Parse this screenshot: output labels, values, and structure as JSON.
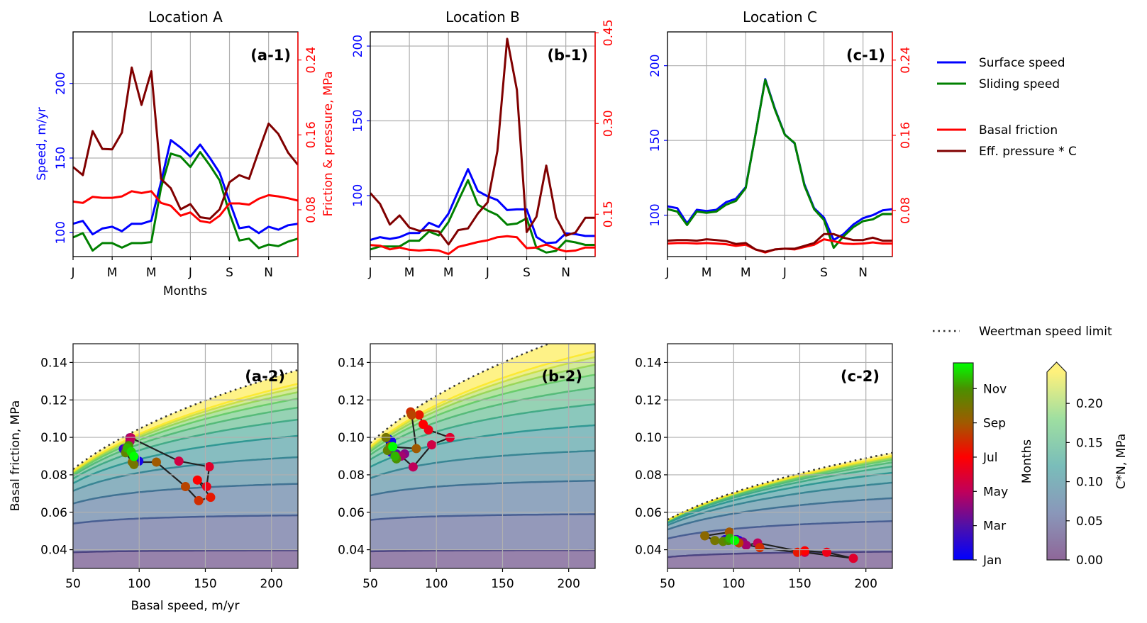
{
  "legend": {
    "items": [
      {
        "label": "Surface speed",
        "color": "#0000ff",
        "style": "solid"
      },
      {
        "label": "Sliding speed",
        "color": "#008000",
        "style": "solid"
      },
      {
        "label": "Basal friction",
        "color": "#ff0000",
        "style": "solid"
      },
      {
        "label": "Eff. pressure * C",
        "color": "#800000",
        "style": "solid"
      }
    ],
    "weertman": {
      "label": "Weertman speed limit",
      "color": "#333333",
      "style": "dotted"
    }
  },
  "colorbars": {
    "months": {
      "label": "Months",
      "ticklabels": [
        "Jan",
        "Mar",
        "May",
        "Jul",
        "Sep",
        "Nov"
      ],
      "tickvalues": [
        0,
        2,
        4,
        6,
        8,
        10
      ],
      "range": [
        0,
        11.5
      ]
    },
    "cn": {
      "label": "C*N, MPa",
      "ticklabels": [
        "0.00",
        "0.05",
        "0.10",
        "0.15",
        "0.20"
      ],
      "tickvalues": [
        0,
        0.05,
        0.1,
        0.15,
        0.2
      ],
      "range": [
        0,
        0.24
      ],
      "extend": "max",
      "colormap": "viridis"
    }
  },
  "axis_labels": {
    "speed": "Speed, m/yr",
    "friction": "Friction & pressure, MPa",
    "months": "Months",
    "basal_friction": "Basal friction, MPa",
    "basal_speed": "Basal speed, m/yr"
  },
  "chart_data": [
    {
      "type": "line",
      "title": "Location A",
      "panel_label": "(a-1)",
      "xticklabels": [
        "J",
        "M",
        "M",
        "J",
        "S",
        "N"
      ],
      "xtickvalues": [
        0,
        2,
        4,
        6,
        8,
        10
      ],
      "xlim": [
        0,
        11.5
      ],
      "ylim_left": [
        84,
        234.5
      ],
      "yticklabels_left": [
        "100",
        "150",
        "200"
      ],
      "ytickvalues_left": [
        100,
        150,
        200
      ],
      "ylim_right": [
        0.03,
        0.27
      ],
      "yticklabels_right": [
        "0.08",
        "0.16",
        "0.24"
      ],
      "ytickvalues_right": [
        0.08,
        0.16,
        0.24
      ],
      "x": [
        0,
        0.5,
        1,
        1.5,
        2,
        2.5,
        3,
        3.5,
        4,
        4.5,
        5,
        5.5,
        6,
        6.5,
        7,
        7.5,
        8,
        8.5,
        9,
        9.5,
        10,
        10.5,
        11,
        11.5
      ],
      "series": [
        {
          "name": "Surface speed",
          "axis": "left",
          "values": [
            106,
            107.9,
            98.9,
            102.8,
            104,
            101,
            106,
            106,
            108,
            134,
            162,
            157,
            151,
            159,
            150,
            140,
            121,
            103,
            104,
            99.7,
            104,
            102,
            105,
            106
          ]
        },
        {
          "name": "Sliding speed",
          "axis": "left",
          "values": [
            96.8,
            99.7,
            88,
            93,
            93,
            90,
            93,
            93,
            93.7,
            130,
            153,
            151,
            144,
            154,
            145,
            135,
            113,
            94.8,
            96,
            89.7,
            92,
            91,
            94,
            96
          ]
        },
        {
          "name": "Basal friction",
          "axis": "right",
          "values": [
            0.0888,
            0.0873,
            0.0938,
            0.0928,
            0.0928,
            0.0943,
            0.0998,
            0.0978,
            0.0998,
            0.0873,
            0.0843,
            0.0737,
            0.0772,
            0.068,
            0.0662,
            0.0737,
            0.0868,
            0.0868,
            0.0855,
            0.0918,
            0.0956,
            0.0943,
            0.0923,
            0.0898
          ]
        },
        {
          "name": "Eff. pressure * C",
          "axis": "right",
          "values": [
            0.1257,
            0.117,
            0.164,
            0.145,
            0.1445,
            0.1625,
            0.232,
            0.192,
            0.228,
            0.113,
            0.103,
            0.0805,
            0.086,
            0.072,
            0.0705,
            0.0805,
            0.1094,
            0.117,
            0.113,
            0.143,
            0.172,
            0.161,
            0.141,
            0.128
          ]
        }
      ]
    },
    {
      "type": "line",
      "title": "Location B",
      "panel_label": "(b-1)",
      "xticklabels": [
        "J",
        "M",
        "M",
        "J",
        "S",
        "N"
      ],
      "xtickvalues": [
        0,
        2,
        4,
        6,
        8,
        10
      ],
      "xlim": [
        0,
        11.5
      ],
      "ylim_left": [
        59.2,
        209.5
      ],
      "yticklabels_left": [
        "100",
        "150",
        "200"
      ],
      "ytickvalues_left": [
        100,
        150,
        200
      ],
      "ylim_right": [
        0.08,
        0.4515
      ],
      "yticklabels_right": [
        "0.15",
        "0.30",
        "0.45"
      ],
      "ytickvalues_right": [
        0.15,
        0.3,
        0.45
      ],
      "x": [
        0,
        0.5,
        1,
        1.5,
        2,
        2.5,
        3,
        3.5,
        4,
        4.5,
        5,
        5.5,
        6,
        6.5,
        7,
        7.5,
        8,
        8.5,
        9,
        9.5,
        10,
        10.5,
        11,
        11.5
      ],
      "series": [
        {
          "name": "Surface speed",
          "axis": "left",
          "values": [
            70.3,
            72.2,
            71,
            72.2,
            75,
            75,
            81.8,
            79,
            88,
            103,
            117.7,
            103,
            99.5,
            97,
            90.3,
            90.8,
            90.8,
            72.3,
            68.2,
            68.7,
            74.7,
            74.2,
            73,
            73
          ]
        },
        {
          "name": "Sliding speed",
          "axis": "left",
          "values": [
            64,
            66,
            66,
            66,
            69.8,
            69.8,
            76,
            73.4,
            82.4,
            96.4,
            110.3,
            94,
            90,
            87,
            80.5,
            81.3,
            84.8,
            65,
            61.9,
            63,
            69.8,
            68.7,
            67,
            67
          ]
        },
        {
          "name": "Basal friction",
          "axis": "right",
          "values": [
            0.099,
            0.0979,
            0.092,
            0.095,
            0.0912,
            0.09,
            0.0912,
            0.09,
            0.0842,
            0.096,
            0.0999,
            0.104,
            0.107,
            0.112,
            0.1136,
            0.112,
            0.094,
            0.095,
            0.0999,
            0.093,
            0.0885,
            0.09,
            0.095,
            0.095
          ]
        },
        {
          "name": "Eff. pressure * C",
          "axis": "right",
          "values": [
            0.185,
            0.167,
            0.133,
            0.148,
            0.128,
            0.1226,
            0.1238,
            0.1214,
            0.1,
            0.1238,
            0.1265,
            0.151,
            0.1696,
            0.2546,
            0.44,
            0.3556,
            0.1206,
            0.146,
            0.2303,
            0.1449,
            0.1147,
            0.1198,
            0.1441,
            0.1441
          ]
        }
      ]
    },
    {
      "type": "line",
      "title": "Location C",
      "panel_label": "(c-1)",
      "xticklabels": [
        "J",
        "M",
        "M",
        "J",
        "S",
        "N"
      ],
      "xtickvalues": [
        0,
        2,
        4,
        6,
        8,
        10
      ],
      "xlim": [
        0,
        11.5
      ],
      "ylim_left": [
        72.3,
        222.6
      ],
      "yticklabels_left": [
        "100",
        "150",
        "200"
      ],
      "ytickvalues_left": [
        100,
        150,
        200
      ],
      "ylim_right": [
        0.031,
        0.27
      ],
      "yticklabels_right": [
        "0.08",
        "0.16",
        "0.24"
      ],
      "ytickvalues_right": [
        0.08,
        0.16,
        0.24
      ],
      "x": [
        0,
        0.5,
        1,
        1.5,
        2,
        2.5,
        3,
        3.5,
        4,
        4.5,
        5,
        5.5,
        6,
        6.5,
        7,
        7.5,
        8,
        8.5,
        9,
        9.5,
        10,
        10.5,
        11,
        11.5
      ],
      "series": [
        {
          "name": "Surface speed",
          "axis": "left",
          "values": [
            105.9,
            104.7,
            94.5,
            103.6,
            102.8,
            103.6,
            108.7,
            111,
            118.7,
            153.8,
            191,
            171,
            154,
            148,
            120.6,
            104.7,
            98.4,
            83.4,
            87.3,
            93.7,
            98,
            100,
            103.2,
            104
          ]
        },
        {
          "name": "Sliding speed",
          "axis": "left",
          "values": [
            104,
            102.4,
            93.4,
            102.4,
            101.6,
            102.4,
            107,
            109.5,
            118.2,
            153.8,
            190.5,
            170.4,
            153.8,
            148.3,
            119.8,
            104,
            96.8,
            78.2,
            85.8,
            92,
            96,
            97.2,
            100.8,
            100.8
          ]
        },
        {
          "name": "Basal friction",
          "axis": "right",
          "values": [
            0.0449,
            0.0454,
            0.0454,
            0.0449,
            0.0454,
            0.0449,
            0.0441,
            0.0424,
            0.0436,
            0.0386,
            0.0354,
            0.0386,
            0.0394,
            0.0386,
            0.0411,
            0.0436,
            0.0494,
            0.0474,
            0.0449,
            0.0444,
            0.0449,
            0.0461,
            0.0449,
            0.0449
          ]
        },
        {
          "name": "Eff. pressure * C",
          "axis": "right",
          "values": [
            0.0479,
            0.0486,
            0.0486,
            0.0479,
            0.0494,
            0.0486,
            0.0474,
            0.0444,
            0.0454,
            0.0386,
            0.0361,
            0.0386,
            0.0394,
            0.0394,
            0.0424,
            0.0454,
            0.0549,
            0.0549,
            0.0511,
            0.0486,
            0.0486,
            0.0511,
            0.0479,
            0.0479
          ]
        }
      ]
    },
    {
      "type": "scatter",
      "panel_label": "(a-2)",
      "xlim": [
        50,
        220
      ],
      "ylim": [
        0.03,
        0.15
      ],
      "xticklabels": [
        "50",
        "100",
        "150",
        "200"
      ],
      "xtickvalues": [
        50,
        100,
        150,
        200
      ],
      "yticklabels": [
        "0.04",
        "0.06",
        "0.08",
        "0.10",
        "0.12",
        "0.14"
      ],
      "ytickvalues": [
        0.04,
        0.06,
        0.08,
        0.1,
        0.12,
        0.14
      ],
      "contour_levels": [
        0.04,
        0.06,
        0.08,
        0.1,
        0.12,
        0.14,
        0.16,
        0.18,
        0.2,
        0.22,
        0.24
      ],
      "weertman_limit": {
        "coefficient": 0.02253,
        "exponent": 0.3333
      },
      "months": [
        0,
        0.5,
        1,
        1.5,
        2,
        2.5,
        3,
        3.5,
        4,
        4.5,
        5,
        5.5,
        6,
        6.5,
        7,
        7.5,
        8,
        8.5,
        9,
        9.5,
        10,
        10.5,
        11,
        11.5
      ],
      "speed": [
        96.8,
        99.7,
        88,
        93,
        93,
        90,
        93,
        93,
        93.7,
        130,
        153,
        151,
        144,
        154,
        145,
        135,
        113,
        94.8,
        96,
        89.7,
        92,
        91,
        94,
        96
      ],
      "friction": [
        0.0888,
        0.0873,
        0.0938,
        0.0928,
        0.0928,
        0.0943,
        0.0998,
        0.0978,
        0.0998,
        0.0873,
        0.0843,
        0.0737,
        0.0772,
        0.068,
        0.0662,
        0.0737,
        0.0868,
        0.0868,
        0.0855,
        0.0918,
        0.0956,
        0.0943,
        0.0923,
        0.0898
      ]
    },
    {
      "type": "scatter",
      "panel_label": "(b-2)",
      "xlim": [
        50,
        220
      ],
      "ylim": [
        0.03,
        0.15
      ],
      "xticklabels": [
        "50",
        "100",
        "150",
        "200"
      ],
      "xtickvalues": [
        50,
        100,
        150,
        200
      ],
      "yticklabels": [
        "0.04",
        "0.06",
        "0.08",
        "0.10",
        "0.12",
        "0.14"
      ],
      "ytickvalues": [
        0.04,
        0.06,
        0.08,
        0.1,
        0.12,
        0.14
      ],
      "contour_levels": [
        0.04,
        0.06,
        0.08,
        0.1,
        0.12,
        0.14,
        0.16,
        0.18,
        0.2,
        0.22,
        0.24
      ],
      "weertman_limit": {
        "coefficient": 0.02633,
        "exponent": 0.3333
      },
      "months": [
        0,
        0.5,
        1,
        1.5,
        2,
        2.5,
        3,
        3.5,
        4,
        4.5,
        5,
        5.5,
        6,
        6.5,
        7,
        7.5,
        8,
        8.5,
        9,
        9.5,
        10,
        10.5,
        11,
        11.5
      ],
      "speed": [
        64,
        66,
        66,
        66,
        69.8,
        69.8,
        76,
        73.4,
        82.4,
        96.4,
        110.3,
        94,
        90,
        87,
        80.5,
        81.3,
        84.8,
        65,
        61.9,
        63,
        69.8,
        68.7,
        67,
        67
      ],
      "friction": [
        0.099,
        0.0979,
        0.092,
        0.095,
        0.0912,
        0.09,
        0.0912,
        0.09,
        0.0842,
        0.096,
        0.0999,
        0.104,
        0.107,
        0.112,
        0.1136,
        0.112,
        0.094,
        0.095,
        0.0999,
        0.093,
        0.0885,
        0.09,
        0.095,
        0.095
      ]
    },
    {
      "type": "scatter",
      "panel_label": "(c-2)",
      "xlim": [
        50,
        220
      ],
      "ylim": [
        0.03,
        0.15
      ],
      "xticklabels": [
        "50",
        "100",
        "150",
        "200"
      ],
      "xtickvalues": [
        50,
        100,
        150,
        200
      ],
      "yticklabels": [
        "0.04",
        "0.06",
        "0.08",
        "0.10",
        "0.12",
        "0.14"
      ],
      "ytickvalues": [
        0.04,
        0.06,
        0.08,
        0.1,
        0.12,
        0.14
      ],
      "contour_levels": [
        0.04,
        0.06,
        0.08,
        0.1,
        0.12,
        0.14,
        0.16,
        0.18,
        0.2,
        0.22,
        0.24
      ],
      "weertman_limit": {
        "coefficient": 0.0152,
        "exponent": 0.3333
      },
      "months": [
        0,
        0.5,
        1,
        1.5,
        2,
        2.5,
        3,
        3.5,
        4,
        4.5,
        5,
        5.5,
        6,
        6.5,
        7,
        7.5,
        8,
        8.5,
        9,
        9.5,
        10,
        10.5,
        11,
        11.5
      ],
      "speed": [
        104,
        102.4,
        93.4,
        102.4,
        101.6,
        102.4,
        107,
        109.5,
        118.2,
        153.8,
        190.5,
        170.4,
        153.8,
        148.3,
        119.8,
        104,
        96.8,
        78.2,
        85.8,
        92,
        96,
        97.2,
        100.8,
        100.8
      ],
      "friction": [
        0.0449,
        0.0454,
        0.0454,
        0.0449,
        0.0454,
        0.0449,
        0.0441,
        0.0424,
        0.0436,
        0.0386,
        0.0354,
        0.0386,
        0.0394,
        0.0386,
        0.0411,
        0.0436,
        0.0494,
        0.0474,
        0.0449,
        0.0444,
        0.0449,
        0.0461,
        0.0449,
        0.0449
      ]
    }
  ]
}
